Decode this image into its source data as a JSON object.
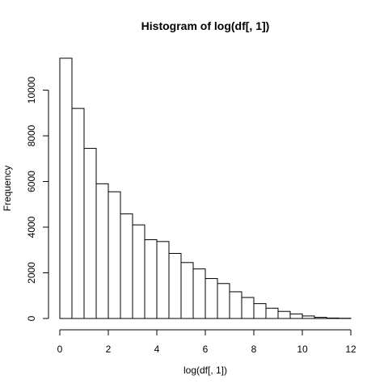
{
  "chart_data": {
    "type": "bar",
    "title": "Histogram of log(df[, 1])",
    "xlabel": "log(df[, 1])",
    "ylabel": "Frequency",
    "bin_width": 0.5,
    "bin_edges": [
      0,
      0.5,
      1,
      1.5,
      2,
      2.5,
      3,
      3.5,
      4,
      4.5,
      5,
      5.5,
      6,
      6.5,
      7,
      7.5,
      8,
      8.5,
      9,
      9.5,
      10,
      10.5,
      11,
      11.5,
      12
    ],
    "values": [
      11400,
      9200,
      7450,
      5900,
      5550,
      4580,
      4100,
      3450,
      3370,
      2850,
      2450,
      2170,
      1750,
      1530,
      1170,
      920,
      650,
      450,
      310,
      200,
      110,
      50,
      20,
      10
    ],
    "xlim": [
      0,
      12
    ],
    "ylim": [
      0,
      11400
    ],
    "x_ticks": [
      0,
      2,
      4,
      6,
      8,
      10,
      12
    ],
    "y_ticks": [
      0,
      2000,
      4000,
      6000,
      8000,
      10000
    ],
    "grid": false
  }
}
